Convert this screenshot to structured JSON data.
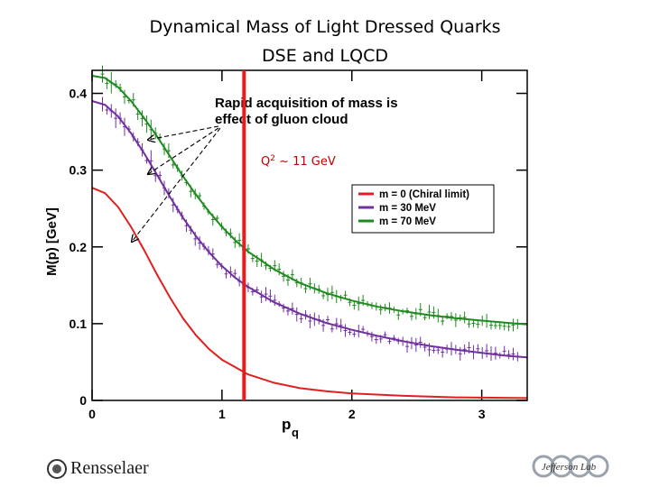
{
  "slide": {
    "title_line1": "Dynamical Mass of Light Dressed Quarks",
    "title_line2": "DSE and LQCD"
  },
  "logos": {
    "left": "Rensselaer",
    "right": "Jefferson Lab"
  },
  "chart_data": {
    "type": "line",
    "ylabel": "M(p) [GeV]",
    "xlabel": "p",
    "xlabel_sub": "q",
    "xlim": [
      0,
      3.35
    ],
    "ylim": [
      0,
      0.43
    ],
    "x_ticks": [
      "0",
      "1",
      "2",
      "3"
    ],
    "y_ticks": [
      "0",
      "0.1",
      "0.2",
      "0.3",
      "0.4"
    ],
    "x_tick_values": [
      0,
      1,
      2,
      3
    ],
    "y_tick_values": [
      0,
      0.1,
      0.2,
      0.3,
      0.4
    ],
    "annotation": "Rapid acquisition of mass is effect of gluon cloud",
    "annotation_line1": "Rapid acquisition of mass is",
    "annotation_line2": "effect of gluon cloud",
    "marker_label_main": "Q",
    "marker_label_sup": "2",
    "marker_label_rest": " ~ 11 GeV",
    "marker_x": 1.17,
    "legend": [
      "m = 0 (Chiral limit)",
      "m = 30 MeV",
      "m = 70 MeV"
    ],
    "series": [
      {
        "name": "m = 0 (Chiral limit)",
        "color": "#e02020",
        "x": [
          0,
          0.1,
          0.2,
          0.3,
          0.4,
          0.5,
          0.6,
          0.7,
          0.8,
          0.9,
          1.0,
          1.2,
          1.4,
          1.6,
          1.8,
          2.0,
          2.4,
          2.8,
          3.35
        ],
        "values": [
          0.277,
          0.27,
          0.252,
          0.226,
          0.196,
          0.164,
          0.134,
          0.107,
          0.085,
          0.067,
          0.053,
          0.034,
          0.023,
          0.016,
          0.012,
          0.009,
          0.006,
          0.004,
          0.003
        ]
      },
      {
        "name": "m = 30 MeV",
        "color": "#7030a0",
        "x": [
          0,
          0.1,
          0.2,
          0.3,
          0.4,
          0.5,
          0.6,
          0.7,
          0.8,
          0.9,
          1.0,
          1.1,
          1.2,
          1.4,
          1.6,
          1.8,
          2.0,
          2.2,
          2.4,
          2.6,
          2.8,
          3.0,
          3.2,
          3.35
        ],
        "values": [
          0.39,
          0.385,
          0.37,
          0.348,
          0.322,
          0.294,
          0.265,
          0.238,
          0.214,
          0.193,
          0.175,
          0.16,
          0.148,
          0.128,
          0.113,
          0.101,
          0.092,
          0.084,
          0.077,
          0.071,
          0.066,
          0.062,
          0.058,
          0.056
        ]
      },
      {
        "name": "m = 70 MeV",
        "color": "#1f8a1f",
        "x": [
          0,
          0.1,
          0.2,
          0.3,
          0.4,
          0.5,
          0.6,
          0.7,
          0.8,
          0.9,
          1.0,
          1.1,
          1.2,
          1.4,
          1.6,
          1.8,
          2.0,
          2.2,
          2.4,
          2.6,
          2.8,
          3.0,
          3.2,
          3.35
        ],
        "values": [
          0.423,
          0.42,
          0.408,
          0.39,
          0.368,
          0.344,
          0.318,
          0.292,
          0.268,
          0.246,
          0.226,
          0.209,
          0.194,
          0.171,
          0.153,
          0.14,
          0.13,
          0.122,
          0.116,
          0.111,
          0.107,
          0.104,
          0.101,
          0.099
        ]
      }
    ]
  }
}
